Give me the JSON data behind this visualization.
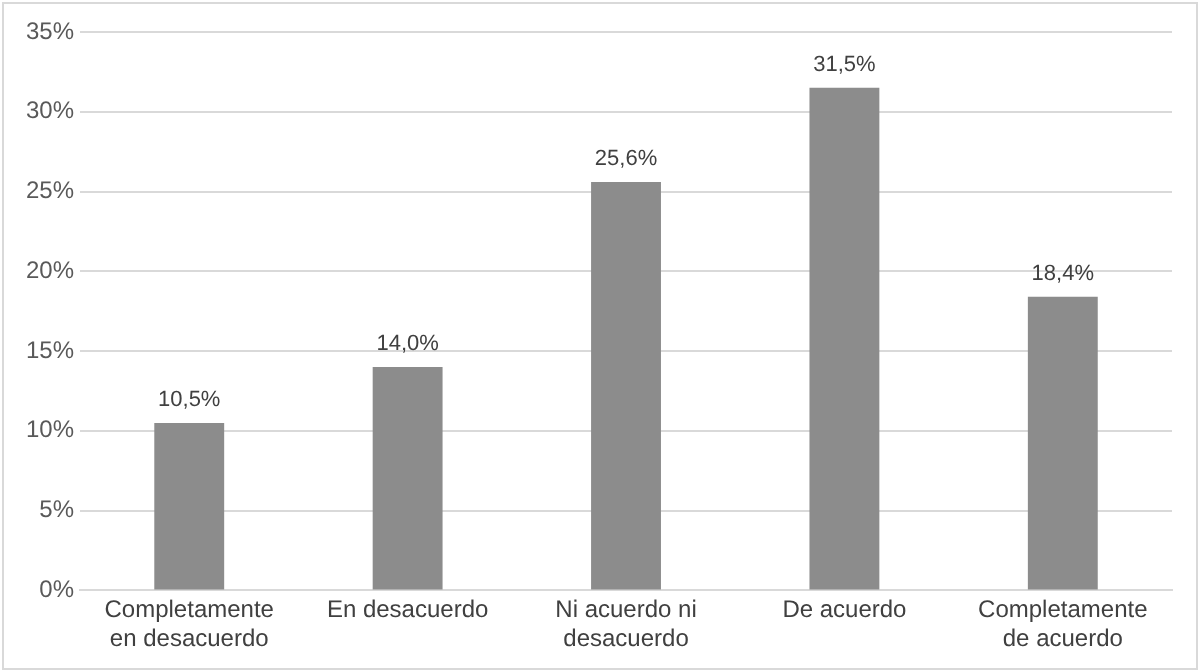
{
  "chart_data": {
    "type": "bar",
    "categories": [
      "Completamente en desacuerdo",
      "En desacuerdo",
      "Ni acuerdo ni desacuerdo",
      "De acuerdo",
      "Completamente de acuerdo"
    ],
    "values": [
      10.5,
      14.0,
      25.6,
      31.5,
      18.4
    ],
    "value_labels": [
      "10,5%",
      "14,0%",
      "25,6%",
      "31,5%",
      "18,4%"
    ],
    "color": "#8c8c8c",
    "ylim": [
      0,
      35
    ],
    "yticks": [
      {
        "value": 0,
        "label": "0%"
      },
      {
        "value": 5,
        "label": "5%"
      },
      {
        "value": 10,
        "label": "10%"
      },
      {
        "value": 15,
        "label": "15%"
      },
      {
        "value": 20,
        "label": "20%"
      },
      {
        "value": 25,
        "label": "25%"
      },
      {
        "value": 30,
        "label": "30%"
      },
      {
        "value": 35,
        "label": "35%"
      }
    ],
    "grid": "y"
  }
}
